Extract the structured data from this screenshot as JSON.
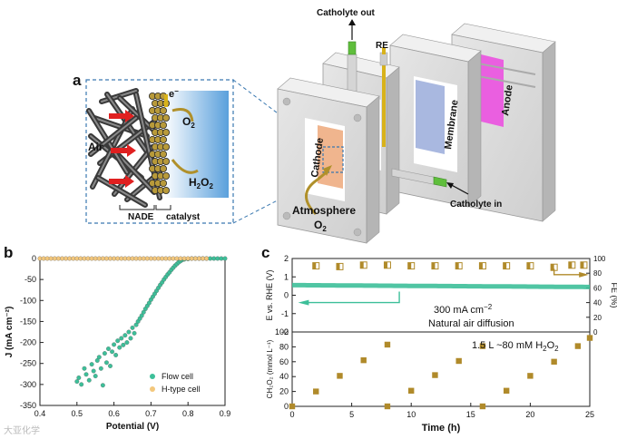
{
  "panel_a": {
    "label": "a",
    "air": "Air",
    "electron": "e",
    "electron_sup": "−",
    "o2": "O",
    "o2_sub": "2",
    "h2o2_main": "H",
    "h2o2_sub1": "2",
    "h2o2_o": "O",
    "h2o2_sub2": "2",
    "nade": "NADE",
    "catalyst": "catalyst",
    "catholyte_out": "Catholyte out",
    "re": "RE",
    "membrane": "Membrane",
    "anode": "Anode",
    "cathode": "Cathode",
    "atmosphere": "Atmosphere",
    "atm_o2": "O",
    "atm_o2_sub": "2",
    "catholyte_in": "Catholyte in",
    "colors": {
      "cathode": "#f0b58e",
      "membrane": "#a9b8e0",
      "anode": "#ea5fe0",
      "electrolyte": "#5aa0dc",
      "arrow": "#e02020",
      "gold": "#b0902a"
    }
  },
  "panel_b": {
    "label": "b",
    "chart_data": {
      "type": "scatter",
      "xlabel": "Potential (V)",
      "ylabel": "J (mA cm⁻²)",
      "xlim": [
        0.4,
        0.9
      ],
      "ylim": [
        -350,
        0
      ],
      "x_ticks": [
        "0.4",
        "0.5",
        "0.6",
        "0.7",
        "0.8",
        "0.9"
      ],
      "y_ticks": [
        "0",
        "-50",
        "-100",
        "-150",
        "-200",
        "-250",
        "-300",
        "-350"
      ],
      "legend_position": "bottom-right",
      "series": [
        {
          "name": "Flow cell",
          "color": "#3dbf99",
          "points": [
            [
              0.5,
              -293
            ],
            [
              0.505,
              -284
            ],
            [
              0.512,
              -300
            ],
            [
              0.52,
              -262
            ],
            [
              0.525,
              -276
            ],
            [
              0.533,
              -290
            ],
            [
              0.54,
              -252
            ],
            [
              0.545,
              -268
            ],
            [
              0.55,
              -280
            ],
            [
              0.555,
              -243
            ],
            [
              0.56,
              -235
            ],
            [
              0.565,
              -262
            ],
            [
              0.57,
              -302
            ],
            [
              0.575,
              -226
            ],
            [
              0.58,
              -248
            ],
            [
              0.585,
              -215
            ],
            [
              0.59,
              -256
            ],
            [
              0.595,
              -222
            ],
            [
              0.6,
              -205
            ],
            [
              0.605,
              -230
            ],
            [
              0.61,
              -196
            ],
            [
              0.615,
              -212
            ],
            [
              0.62,
              -190
            ],
            [
              0.625,
              -206
            ],
            [
              0.63,
              -183
            ],
            [
              0.635,
              -200
            ],
            [
              0.64,
              -175
            ],
            [
              0.645,
              -190
            ],
            [
              0.65,
              -165
            ],
            [
              0.655,
              -178
            ],
            [
              0.66,
              -158
            ],
            [
              0.665,
              -150
            ],
            [
              0.67,
              -143
            ],
            [
              0.675,
              -136
            ],
            [
              0.68,
              -128
            ],
            [
              0.685,
              -120
            ],
            [
              0.69,
              -113
            ],
            [
              0.695,
              -106
            ],
            [
              0.7,
              -98
            ],
            [
              0.705,
              -91
            ],
            [
              0.71,
              -84
            ],
            [
              0.715,
              -77
            ],
            [
              0.72,
              -70
            ],
            [
              0.725,
              -63
            ],
            [
              0.73,
              -57
            ],
            [
              0.735,
              -50
            ],
            [
              0.74,
              -44
            ],
            [
              0.745,
              -38
            ],
            [
              0.75,
              -33
            ],
            [
              0.755,
              -27
            ],
            [
              0.76,
              -22
            ],
            [
              0.765,
              -17
            ],
            [
              0.77,
              -13
            ],
            [
              0.775,
              -9
            ],
            [
              0.78,
              -6
            ],
            [
              0.785,
              -3
            ],
            [
              0.79,
              -2
            ],
            [
              0.8,
              -1
            ],
            [
              0.81,
              0
            ],
            [
              0.82,
              0
            ],
            [
              0.83,
              0
            ],
            [
              0.84,
              0
            ],
            [
              0.85,
              0
            ],
            [
              0.86,
              0
            ],
            [
              0.87,
              0
            ],
            [
              0.88,
              0
            ],
            [
              0.89,
              0
            ],
            [
              0.9,
              0
            ]
          ]
        },
        {
          "name": "H-type cell",
          "color": "#f3c77c",
          "points": [
            [
              0.4,
              0
            ],
            [
              0.41,
              0
            ],
            [
              0.42,
              0
            ],
            [
              0.43,
              0
            ],
            [
              0.44,
              0
            ],
            [
              0.45,
              0
            ],
            [
              0.46,
              0
            ],
            [
              0.47,
              0
            ],
            [
              0.48,
              0
            ],
            [
              0.49,
              0
            ],
            [
              0.5,
              0
            ],
            [
              0.51,
              0
            ],
            [
              0.52,
              0
            ],
            [
              0.53,
              0
            ],
            [
              0.54,
              0
            ],
            [
              0.55,
              0
            ],
            [
              0.56,
              0
            ],
            [
              0.57,
              0
            ],
            [
              0.58,
              0
            ],
            [
              0.59,
              0
            ],
            [
              0.6,
              0
            ],
            [
              0.61,
              0
            ],
            [
              0.62,
              0
            ],
            [
              0.63,
              0
            ],
            [
              0.64,
              0
            ],
            [
              0.65,
              0
            ],
            [
              0.66,
              0
            ],
            [
              0.67,
              0
            ],
            [
              0.68,
              0
            ],
            [
              0.69,
              0
            ],
            [
              0.7,
              0
            ],
            [
              0.71,
              0
            ],
            [
              0.72,
              0
            ],
            [
              0.73,
              0
            ],
            [
              0.74,
              0
            ],
            [
              0.75,
              0
            ],
            [
              0.76,
              0
            ],
            [
              0.77,
              0
            ],
            [
              0.78,
              0
            ],
            [
              0.79,
              0
            ],
            [
              0.8,
              0
            ],
            [
              0.81,
              0
            ],
            [
              0.82,
              0
            ],
            [
              0.83,
              0
            ],
            [
              0.84,
              0
            ],
            [
              0.85,
              0
            ]
          ]
        }
      ]
    }
  },
  "panel_c": {
    "label": "c",
    "annotation_current": "300 mA cm",
    "annotation_current_sup": "−2",
    "annotation_air": "Natural air diffusion",
    "annotation_h2o2_pre": "1.5 L ~80 mM H",
    "annotation_h2o2_sub1": "2",
    "annotation_h2o2_o": "O",
    "annotation_h2o2_sub2": "2",
    "chart_data": [
      {
        "type": "line",
        "xlabel": "Time (h)",
        "ylabel": "E vs. RHE (V)",
        "xlim": [
          0,
          25
        ],
        "ylim": [
          -2,
          2
        ],
        "y_ticks": [
          "2",
          "1",
          "0",
          "-1",
          "-2"
        ],
        "series": [
          {
            "color": "#3dbf99",
            "x": [
              0,
              25
            ],
            "y": [
              0.55,
              0.45
            ]
          }
        ],
        "secondary_axis": {
          "ylabel": "FE (%)",
          "ylim": [
            0,
            100
          ],
          "y_ticks": [
            "100",
            "80",
            "60",
            "40",
            "20",
            "0"
          ],
          "series": [
            {
              "type": "scatter",
              "color": "#b08a2a",
              "x": [
                2,
                4,
                6,
                8,
                10,
                12,
                14,
                16,
                18,
                20,
                22,
                23.5,
                24.5
              ],
              "y": [
                90,
                89,
                91,
                91,
                90,
                90,
                90,
                90,
                90,
                90,
                88,
                91,
                91
              ]
            }
          ]
        }
      },
      {
        "type": "scatter",
        "xlabel": "Time (h)",
        "ylabel": "CH₂O₂ (mmol L⁻¹)",
        "xlim": [
          0,
          25
        ],
        "ylim": [
          0,
          100
        ],
        "x_ticks": [
          "0",
          "5",
          "10",
          "15",
          "20",
          "25"
        ],
        "y_ticks": [
          "100",
          "80",
          "60",
          "40",
          "20",
          "0"
        ],
        "series": [
          {
            "color": "#b08a2a",
            "x": [
              0,
              2,
              4,
              6,
              8,
              8,
              10,
              12,
              14,
              16,
              16,
              18,
              20,
              22,
              24,
              25
            ],
            "y": [
              0,
              20,
              41,
              62,
              83,
              0,
              21,
              42,
              61,
              81,
              0,
              21,
              41,
              60,
              81,
              92
            ]
          }
        ]
      }
    ]
  },
  "watermark": "大亚化学"
}
